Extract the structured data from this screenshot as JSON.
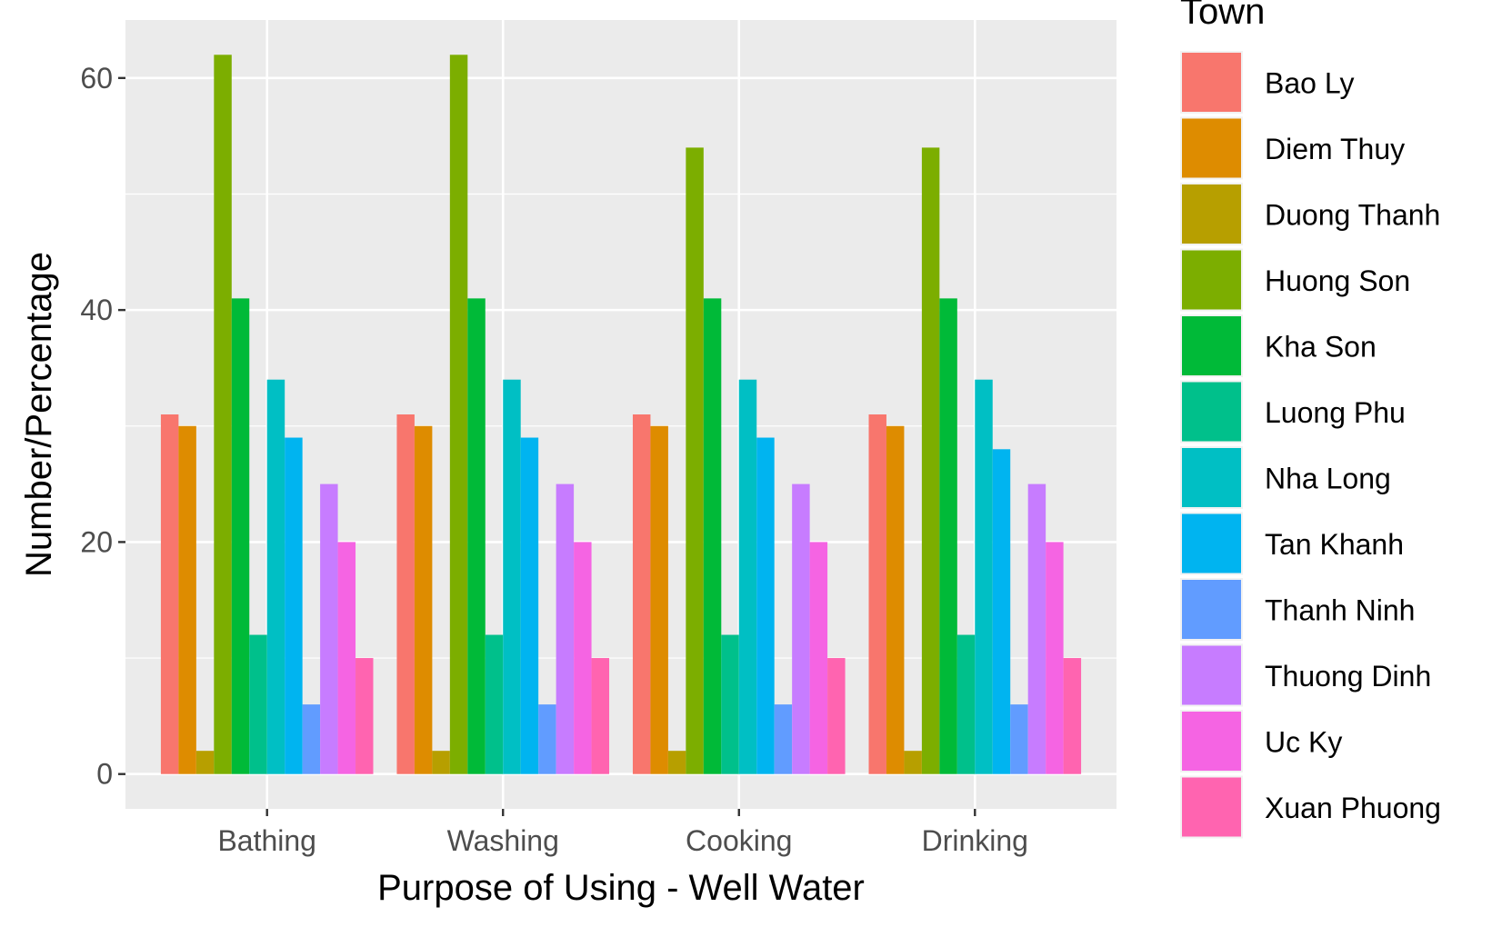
{
  "chart_data": {
    "type": "bar",
    "xlabel": "Purpose of Using - Well Water",
    "ylabel": "Number/Percentage",
    "categories": [
      "Bathing",
      "Washing",
      "Cooking",
      "Drinking"
    ],
    "ylim": [
      -3,
      65
    ],
    "y_ticks": [
      0,
      20,
      40,
      60
    ],
    "grid": true,
    "panel_background": "#EBEBEB",
    "legend": {
      "title": "Town",
      "position": "right"
    },
    "series": [
      {
        "name": "Bao Ly",
        "color": "#F8766D",
        "values": [
          31,
          31,
          31,
          31
        ]
      },
      {
        "name": "Diem Thuy",
        "color": "#DE8C00",
        "values": [
          30,
          30,
          30,
          30
        ]
      },
      {
        "name": "Duong Thanh",
        "color": "#B79F00",
        "values": [
          2,
          2,
          2,
          2
        ]
      },
      {
        "name": "Huong Son",
        "color": "#7CAE00",
        "values": [
          62,
          62,
          54,
          54
        ]
      },
      {
        "name": "Kha Son",
        "color": "#00BA38",
        "values": [
          41,
          41,
          41,
          41
        ]
      },
      {
        "name": "Luong Phu",
        "color": "#00C08B",
        "values": [
          12,
          12,
          12,
          12
        ]
      },
      {
        "name": "Nha Long",
        "color": "#00BFC4",
        "values": [
          34,
          34,
          34,
          34
        ]
      },
      {
        "name": "Tan Khanh",
        "color": "#00B4F0",
        "values": [
          29,
          29,
          29,
          28
        ]
      },
      {
        "name": "Thanh Ninh",
        "color": "#619CFF",
        "values": [
          6,
          6,
          6,
          6
        ]
      },
      {
        "name": "Thuong Dinh",
        "color": "#C77CFF",
        "values": [
          25,
          25,
          25,
          25
        ]
      },
      {
        "name": "Uc Ky",
        "color": "#F564E3",
        "values": [
          20,
          20,
          20,
          20
        ]
      },
      {
        "name": "Xuan Phuong",
        "color": "#FF64B0",
        "values": [
          10,
          10,
          10,
          10
        ]
      }
    ]
  }
}
